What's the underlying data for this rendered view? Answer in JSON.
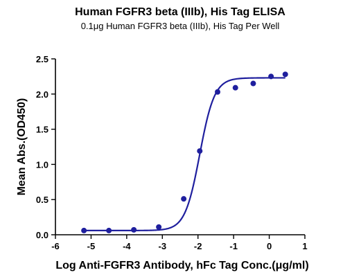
{
  "chart_data": {
    "type": "scatter",
    "title": "Human FGFR3 beta (IIIb), His Tag ELISA",
    "subtitle": "0.1μg Human FGFR3 beta (IIIb), His Tag Per Well",
    "xlabel": "Log Anti-FGFR3 Antibody, hFc Tag Conc.(μg/ml)",
    "ylabel": "Mean Abs.(OD450)",
    "xlim": [
      -6,
      1
    ],
    "ylim": [
      0,
      2.5
    ],
    "x_ticks": [
      "-6",
      "-5",
      "-4",
      "-3",
      "-2",
      "-1",
      "0",
      "1"
    ],
    "y_ticks": [
      "0.0",
      "0.5",
      "1.0",
      "1.5",
      "2.0",
      "2.5"
    ],
    "grid": false,
    "series": [
      {
        "points": [
          {
            "x": -5.2,
            "y": 0.06
          },
          {
            "x": -4.5,
            "y": 0.06
          },
          {
            "x": -3.8,
            "y": 0.07
          },
          {
            "x": -3.1,
            "y": 0.11
          },
          {
            "x": -2.4,
            "y": 0.51
          },
          {
            "x": -1.95,
            "y": 1.19
          },
          {
            "x": -1.45,
            "y": 2.03
          },
          {
            "x": -0.95,
            "y": 2.09
          },
          {
            "x": -0.45,
            "y": 2.15
          },
          {
            "x": 0.05,
            "y": 2.25
          },
          {
            "x": 0.45,
            "y": 2.28
          }
        ],
        "fit": {
          "model": "4PL",
          "bottom": 0.06,
          "top": 2.23,
          "logEC50": -1.95,
          "hill": 2.1,
          "x_range": [
            -5.2,
            0.45
          ]
        }
      }
    ],
    "colors": {
      "series": "#1f1f9e",
      "axis": "#000000"
    }
  }
}
